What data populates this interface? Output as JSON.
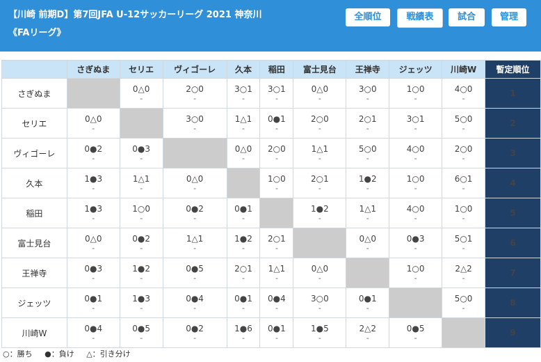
{
  "header": {
    "title_line1": "【川崎 前期D】第7回JFA U-12サッカーリーグ 2021 神奈川",
    "title_line2": "《FAリーグ》",
    "nav": [
      "全順位",
      "戦績表",
      "試合",
      "管理"
    ],
    "active_nav": "戦績表",
    "brand_color": "#2f8fd8"
  },
  "table": {
    "columns": [
      "さぎぬま",
      "セリエ",
      "ヴィゴーレ",
      "久本",
      "稲田",
      "富士見台",
      "王禅寺",
      "ジェッツ",
      "川崎W"
    ],
    "rank_header": "暫定順位",
    "sub_mark": "-",
    "rows": [
      {
        "team": "さぎぬま",
        "results": [
          "",
          "0△0",
          "2○0",
          "3○1",
          "3○1",
          "0△0",
          "3○0",
          "1○0",
          "4○0"
        ],
        "rank": "1"
      },
      {
        "team": "セリエ",
        "results": [
          "0△0",
          "",
          "3○0",
          "1△1",
          "0●1",
          "2○0",
          "2○1",
          "3○1",
          "5○0"
        ],
        "rank": "2"
      },
      {
        "team": "ヴィゴーレ",
        "results": [
          "0●2",
          "0●3",
          "",
          "0△0",
          "2○0",
          "1△1",
          "5○0",
          "4○0",
          "2○0"
        ],
        "rank": "3"
      },
      {
        "team": "久本",
        "results": [
          "1●3",
          "1△1",
          "0△0",
          "",
          "1○0",
          "2○1",
          "1●2",
          "1○0",
          "6○1"
        ],
        "rank": "4"
      },
      {
        "team": "稲田",
        "results": [
          "1●3",
          "1○0",
          "0●2",
          "0●1",
          "",
          "1●2",
          "1△1",
          "4○0",
          "1○0"
        ],
        "rank": "5"
      },
      {
        "team": "富士見台",
        "results": [
          "0△0",
          "0●2",
          "1△1",
          "1●2",
          "2○1",
          "",
          "0△0",
          "0●3",
          "5○1"
        ],
        "rank": "6"
      },
      {
        "team": "王禅寺",
        "results": [
          "0●3",
          "1●2",
          "0●5",
          "2○1",
          "1△1",
          "0△0",
          "",
          "1○0",
          "2△2"
        ],
        "rank": "7"
      },
      {
        "team": "ジェッツ",
        "results": [
          "0●1",
          "1●3",
          "0●4",
          "0●1",
          "0●4",
          "3○0",
          "0●1",
          "",
          "5○0"
        ],
        "rank": "8"
      },
      {
        "team": "川崎W",
        "results": [
          "0●4",
          "0●5",
          "0●2",
          "1●6",
          "0●1",
          "1●5",
          "2△2",
          "0●5",
          ""
        ],
        "rank": "9"
      }
    ]
  },
  "legend": {
    "win": "○：勝ち",
    "loss": "●：負け",
    "draw": "△：引き分け"
  }
}
